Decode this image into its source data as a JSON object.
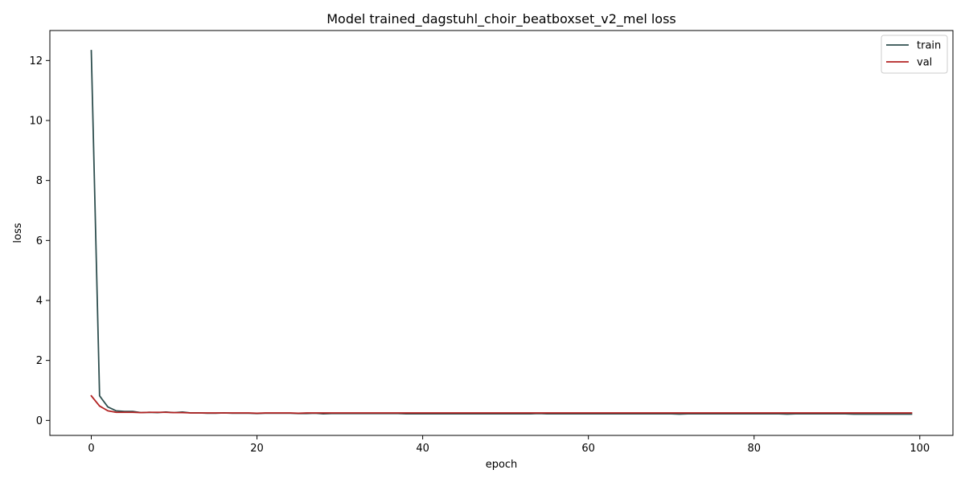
{
  "chart_data": {
    "type": "line",
    "title": "Model trained_dagstuhl_choir_beatboxset_v2_mel loss",
    "xlabel": "epoch",
    "ylabel": "loss",
    "xlim": [
      -5,
      104
    ],
    "ylim": [
      -0.5,
      13.0
    ],
    "xticks": [
      0,
      20,
      40,
      60,
      80,
      100
    ],
    "yticks": [
      0,
      2,
      4,
      6,
      8,
      10,
      12
    ],
    "grid": false,
    "legend_position": "top-right",
    "series": [
      {
        "name": "train",
        "color": "#2f4f4f",
        "x": [
          0,
          1,
          2,
          3,
          4,
          5,
          6,
          7,
          8,
          9,
          10,
          11,
          12,
          13,
          14,
          15,
          16,
          17,
          18,
          19,
          20,
          21,
          22,
          23,
          24,
          25,
          26,
          27,
          28,
          29,
          30,
          31,
          32,
          33,
          34,
          35,
          36,
          37,
          38,
          39,
          40,
          41,
          42,
          43,
          44,
          45,
          46,
          47,
          48,
          49,
          50,
          51,
          52,
          53,
          54,
          55,
          56,
          57,
          58,
          59,
          60,
          61,
          62,
          63,
          64,
          65,
          66,
          67,
          68,
          69,
          70,
          71,
          72,
          73,
          74,
          75,
          76,
          77,
          78,
          79,
          80,
          81,
          82,
          83,
          84,
          85,
          86,
          87,
          88,
          89,
          90,
          91,
          92,
          93,
          94,
          95,
          96,
          97,
          98,
          99
        ],
        "values": [
          12.33,
          0.82,
          0.45,
          0.32,
          0.3,
          0.3,
          0.26,
          0.27,
          0.26,
          0.28,
          0.26,
          0.28,
          0.25,
          0.25,
          0.24,
          0.24,
          0.25,
          0.24,
          0.24,
          0.24,
          0.23,
          0.24,
          0.24,
          0.24,
          0.24,
          0.23,
          0.23,
          0.24,
          0.22,
          0.23,
          0.23,
          0.23,
          0.23,
          0.23,
          0.23,
          0.23,
          0.23,
          0.23,
          0.22,
          0.22,
          0.22,
          0.22,
          0.22,
          0.22,
          0.22,
          0.22,
          0.22,
          0.22,
          0.22,
          0.22,
          0.22,
          0.22,
          0.22,
          0.22,
          0.23,
          0.22,
          0.22,
          0.22,
          0.22,
          0.22,
          0.22,
          0.22,
          0.22,
          0.22,
          0.22,
          0.22,
          0.22,
          0.22,
          0.22,
          0.22,
          0.22,
          0.21,
          0.22,
          0.22,
          0.22,
          0.22,
          0.22,
          0.22,
          0.22,
          0.22,
          0.22,
          0.22,
          0.22,
          0.22,
          0.21,
          0.22,
          0.22,
          0.22,
          0.22,
          0.22,
          0.22,
          0.22,
          0.21,
          0.21,
          0.21,
          0.21,
          0.21,
          0.21,
          0.21,
          0.21
        ]
      },
      {
        "name": "val",
        "color": "#b22222",
        "x": [
          0,
          1,
          2,
          3,
          4,
          5,
          6,
          7,
          8,
          9,
          10,
          11,
          12,
          13,
          14,
          15,
          16,
          17,
          18,
          19,
          20,
          21,
          22,
          23,
          24,
          25,
          26,
          27,
          28,
          29,
          30,
          31,
          32,
          33,
          34,
          35,
          36,
          37,
          38,
          39,
          40,
          41,
          42,
          43,
          44,
          45,
          46,
          47,
          48,
          49,
          50,
          51,
          52,
          53,
          54,
          55,
          56,
          57,
          58,
          59,
          60,
          61,
          62,
          63,
          64,
          65,
          66,
          67,
          68,
          69,
          70,
          71,
          72,
          73,
          74,
          75,
          76,
          77,
          78,
          79,
          80,
          81,
          82,
          83,
          84,
          85,
          86,
          87,
          88,
          89,
          90,
          91,
          92,
          93,
          94,
          95,
          96,
          97,
          98,
          99
        ],
        "values": [
          0.82,
          0.48,
          0.32,
          0.27,
          0.27,
          0.27,
          0.26,
          0.27,
          0.27,
          0.27,
          0.26,
          0.26,
          0.25,
          0.25,
          0.25,
          0.25,
          0.25,
          0.25,
          0.25,
          0.25,
          0.24,
          0.25,
          0.25,
          0.25,
          0.25,
          0.24,
          0.25,
          0.25,
          0.25,
          0.25,
          0.25,
          0.25,
          0.25,
          0.25,
          0.25,
          0.25,
          0.25,
          0.25,
          0.25,
          0.25,
          0.25,
          0.25,
          0.25,
          0.25,
          0.25,
          0.25,
          0.25,
          0.25,
          0.25,
          0.25,
          0.25,
          0.25,
          0.25,
          0.25,
          0.25,
          0.25,
          0.25,
          0.25,
          0.25,
          0.25,
          0.25,
          0.25,
          0.25,
          0.25,
          0.25,
          0.25,
          0.25,
          0.25,
          0.25,
          0.25,
          0.25,
          0.25,
          0.25,
          0.25,
          0.25,
          0.25,
          0.25,
          0.25,
          0.25,
          0.25,
          0.25,
          0.25,
          0.25,
          0.25,
          0.25,
          0.25,
          0.25,
          0.25,
          0.25,
          0.25,
          0.25,
          0.25,
          0.25,
          0.25,
          0.25,
          0.25,
          0.25,
          0.25,
          0.25,
          0.25
        ]
      }
    ]
  }
}
